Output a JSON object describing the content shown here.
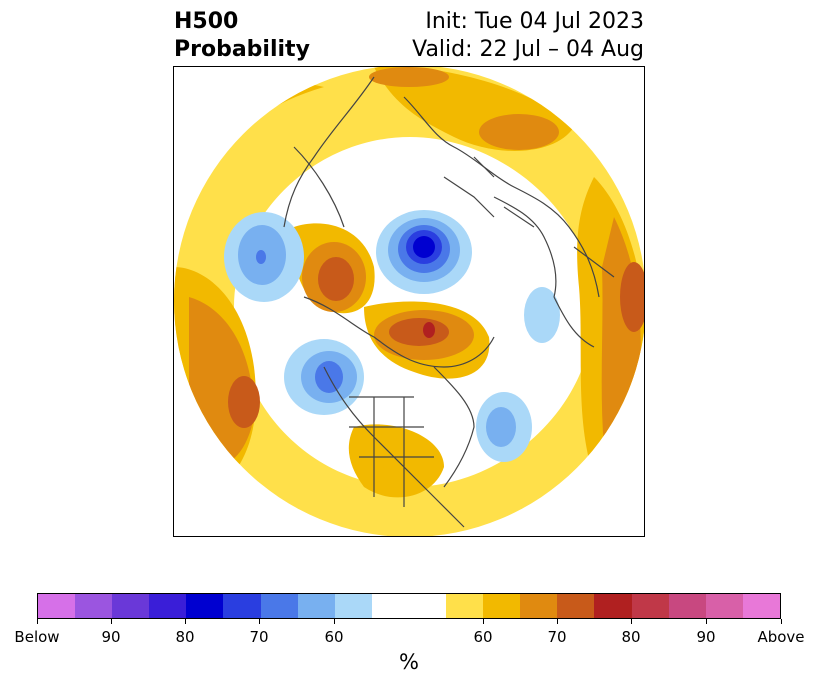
{
  "header": {
    "title_line1": "H500",
    "title_line2": "Probability",
    "init": "Init: Tue 04 Jul 2023",
    "valid": "Valid: 22 Jul – 04 Aug"
  },
  "colorbar": {
    "segments": [
      "#d670e8",
      "#9b55e0",
      "#6a38d8",
      "#3a1ed8",
      "#0000d0",
      "#2a3ee0",
      "#4a78e8",
      "#78b0f0",
      "#aad8f8",
      "#ffffff",
      "#ffe04a",
      "#f2b900",
      "#e08a10",
      "#c85a1a",
      "#b02020",
      "#c03848",
      "#c84880",
      "#d860a8",
      "#e878d8"
    ],
    "tick_labels": [
      "Below",
      "90",
      "80",
      "70",
      "60",
      "60",
      "70",
      "80",
      "90",
      "Above"
    ],
    "unit_label": "%"
  },
  "map": {
    "below_colors": [
      "#aad8f8",
      "#78b0f0",
      "#4a78e8",
      "#2a3ee0",
      "#0000d0"
    ],
    "above_colors": [
      "#ffe04a",
      "#f2b900",
      "#e08a10",
      "#c85a1a",
      "#b02020"
    ],
    "coastline_color": "#444444"
  }
}
